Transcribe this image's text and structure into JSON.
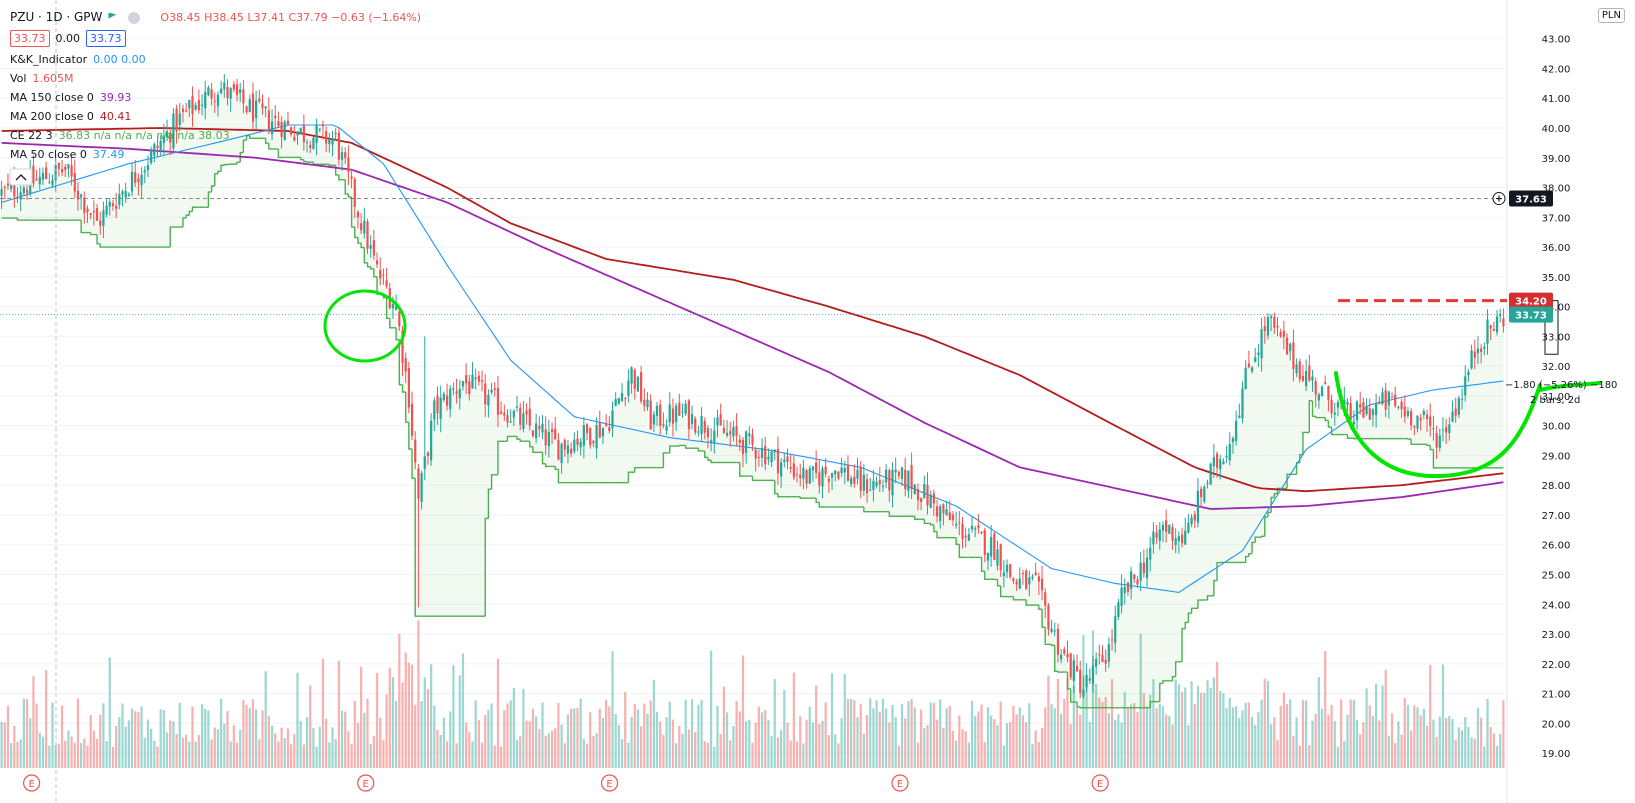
{
  "header": {
    "symbol": "PZU · 1D · GPW",
    "ohlc": {
      "o": "O38.45",
      "h": "H38.45",
      "l": "L37.41",
      "c": "C37.79",
      "chg": "−0.63 (−1.64%)"
    },
    "bid": "33.73",
    "spread": "0.00",
    "ask": "33.73",
    "currency": "PLN"
  },
  "indicators": [
    {
      "name": "K&K_Indicator",
      "values": "0.00  0.00",
      "color": "#2196f3"
    },
    {
      "name": "Vol",
      "values": "1.605M",
      "color": "#ef5350"
    },
    {
      "name": "MA 150 close 0",
      "values": "39.93",
      "color": "#9c27b0"
    },
    {
      "name": "MA 200 close 0",
      "values": "40.41",
      "color": "#b71c1c"
    },
    {
      "name": "CE 22 3",
      "values": "36.83  n/a  n/a  n/a  n/a  n/a  38.03",
      "color": "#4caf50"
    },
    {
      "name": "MA 50 close 0",
      "values": "37.49",
      "color": "#2196f3"
    }
  ],
  "price_labels": {
    "crosshair": "37.63",
    "high_level": "34.20",
    "last": "33.73"
  },
  "annotation": {
    "line1": "−1.80 (−5.26%) −180",
    "line2": "2 bars, 2d"
  },
  "colors": {
    "up": "#26a69a",
    "down": "#ef5350",
    "ma50": "#2196f3",
    "ma150": "#9c27b0",
    "ma200": "#b71c1c",
    "ce_long": "#4caf50",
    "ce_short": "#ef5350",
    "marker": "#00e600"
  },
  "chart_data": {
    "type": "candlestick",
    "ylim": [
      18.5,
      44.3
    ],
    "yticks": [
      19,
      20,
      21,
      22,
      23,
      24,
      25,
      26,
      27,
      28,
      29,
      30,
      31,
      32,
      33,
      34,
      35,
      36,
      37,
      38,
      39,
      40,
      41,
      42,
      43
    ],
    "earnings_markers": [
      "E",
      "E",
      "E",
      "E",
      "E"
    ],
    "earnings_positions": [
      0.021,
      0.243,
      0.405,
      0.598,
      0.731
    ],
    "waypoints": [
      [
        0,
        37.8
      ],
      [
        20,
        38.6
      ],
      [
        30,
        36.8
      ],
      [
        35,
        37.5
      ],
      [
        45,
        38.8
      ],
      [
        55,
        40.2
      ],
      [
        68,
        41.4
      ],
      [
        80,
        40.5
      ],
      [
        95,
        39.8
      ],
      [
        105,
        39.6
      ],
      [
        112,
        37.2
      ],
      [
        118,
        35.2
      ],
      [
        124,
        34.0
      ],
      [
        128,
        31.0
      ],
      [
        131,
        27.5
      ],
      [
        136,
        30.5
      ],
      [
        145,
        31.5
      ],
      [
        160,
        30.4
      ],
      [
        175,
        29.3
      ],
      [
        190,
        30.0
      ],
      [
        198,
        31.8
      ],
      [
        204,
        30.2
      ],
      [
        214,
        30.4
      ],
      [
        226,
        29.8
      ],
      [
        240,
        29.1
      ],
      [
        254,
        28.2
      ],
      [
        263,
        28.6
      ],
      [
        270,
        28.0
      ],
      [
        285,
        28.2
      ],
      [
        300,
        26.6
      ],
      [
        312,
        25.9
      ],
      [
        318,
        24.8
      ],
      [
        325,
        24.6
      ],
      [
        333,
        22.4
      ],
      [
        340,
        21.2
      ],
      [
        348,
        22.5
      ],
      [
        352,
        24.2
      ],
      [
        358,
        25.2
      ],
      [
        365,
        26.6
      ],
      [
        372,
        26.2
      ],
      [
        378,
        28.0
      ],
      [
        386,
        29.5
      ],
      [
        392,
        32.0
      ],
      [
        398,
        33.5
      ],
      [
        406,
        32.2
      ],
      [
        414,
        31.2
      ],
      [
        424,
        30.3
      ],
      [
        436,
        30.8
      ],
      [
        446,
        30.2
      ],
      [
        452,
        29.6
      ],
      [
        458,
        30.9
      ],
      [
        464,
        32.8
      ],
      [
        472,
        33.7
      ]
    ],
    "ma50": [
      [
        0,
        37.5
      ],
      [
        40,
        38.8
      ],
      [
        75,
        39.7
      ],
      [
        90,
        40.1
      ],
      [
        105,
        40.1
      ],
      [
        120,
        38.8
      ],
      [
        140,
        35.4
      ],
      [
        160,
        32.2
      ],
      [
        180,
        30.3
      ],
      [
        210,
        29.6
      ],
      [
        240,
        29.2
      ],
      [
        270,
        28.6
      ],
      [
        300,
        27.3
      ],
      [
        330,
        25.2
      ],
      [
        350,
        24.7
      ],
      [
        370,
        24.4
      ],
      [
        390,
        25.8
      ],
      [
        410,
        29.2
      ],
      [
        430,
        30.7
      ],
      [
        450,
        31.2
      ],
      [
        472,
        31.5
      ]
    ],
    "ma150": [
      [
        0,
        39.5
      ],
      [
        40,
        39.3
      ],
      [
        80,
        39.0
      ],
      [
        110,
        38.6
      ],
      [
        140,
        37.5
      ],
      [
        170,
        36.0
      ],
      [
        200,
        34.6
      ],
      [
        230,
        33.2
      ],
      [
        260,
        31.8
      ],
      [
        290,
        30.1
      ],
      [
        320,
        28.6
      ],
      [
        350,
        27.9
      ],
      [
        380,
        27.2
      ],
      [
        410,
        27.3
      ],
      [
        440,
        27.6
      ],
      [
        472,
        28.1
      ]
    ],
    "ma200": [
      [
        0,
        39.9
      ],
      [
        50,
        40.0
      ],
      [
        90,
        39.9
      ],
      [
        110,
        39.5
      ],
      [
        140,
        38.0
      ],
      [
        160,
        36.8
      ],
      [
        190,
        35.6
      ],
      [
        230,
        34.9
      ],
      [
        260,
        34.0
      ],
      [
        290,
        33.0
      ],
      [
        320,
        31.7
      ],
      [
        350,
        30.0
      ],
      [
        375,
        28.6
      ],
      [
        395,
        27.9
      ],
      [
        410,
        27.8
      ],
      [
        440,
        28.0
      ],
      [
        472,
        28.4
      ]
    ]
  }
}
